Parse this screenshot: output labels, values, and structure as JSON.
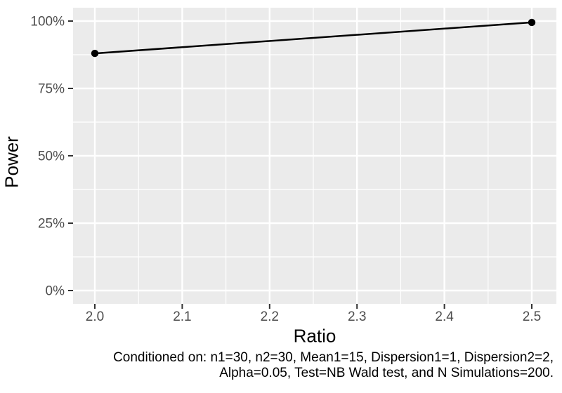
{
  "chart_data": {
    "type": "line",
    "title": "",
    "xlabel": "Ratio",
    "ylabel": "Power",
    "series": [
      {
        "name": "Power",
        "x": [
          2.0,
          2.5
        ],
        "y": [
          0.88,
          0.995
        ]
      }
    ],
    "x_ticks": [
      2.0,
      2.1,
      2.2,
      2.3,
      2.4,
      2.5
    ],
    "x_tick_labels": [
      "2.0",
      "2.1",
      "2.2",
      "2.3",
      "2.4",
      "2.5"
    ],
    "y_ticks": [
      0,
      0.25,
      0.5,
      0.75,
      1.0
    ],
    "y_tick_labels": [
      "0%",
      "25%",
      "50%",
      "75%",
      "100%"
    ],
    "xlim": [
      1.975,
      2.528
    ],
    "ylim": [
      -0.05,
      1.05
    ],
    "grid": "major+minor",
    "legend": "none",
    "caption_lines": [
      "Conditioned on: n1=30, n2=30, Mean1=15, Dispersion1=1, Dispersion2=2,",
      "Alpha=0.05, Test=NB Wald test, and N Simulations=200."
    ],
    "caption": "Conditioned on: n1=30, n2=30, Mean1=15, Dispersion1=1, Dispersion2=2, Alpha=0.05, Test=NB Wald test, and N Simulations=200."
  },
  "colors": {
    "page_background": "#FFFFFF",
    "panel_background": "#EBEBEB",
    "grid": "#FFFFFF",
    "tick_marks": "#333333",
    "tick_labels": "#4D4D4D",
    "axis_titles": "#000000",
    "caption_text": "#000000",
    "line": "#000000",
    "point": "#000000"
  }
}
